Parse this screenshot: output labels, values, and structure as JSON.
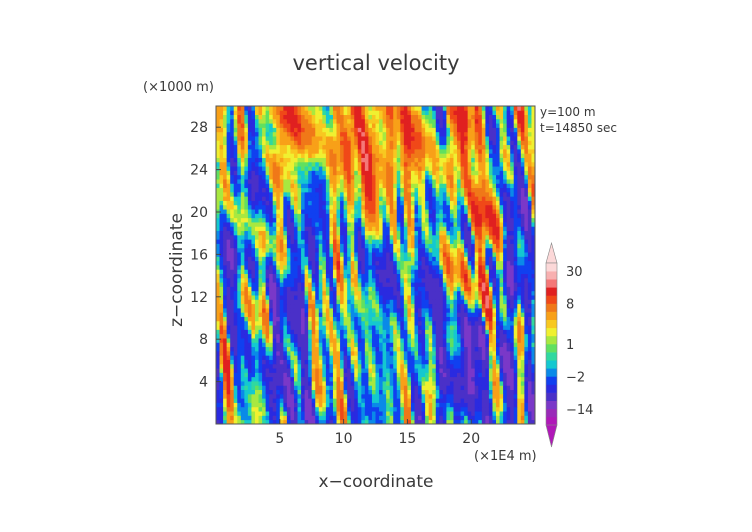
{
  "chart_data": {
    "type": "heatmap",
    "title": "vertical velocity",
    "xlabel": "x−coordinate",
    "ylabel": "z−coordinate",
    "x_unit": "(×1E4 m)",
    "y_unit": "(×1000 m)",
    "annotations": [
      "y=100 m",
      "t=14850 sec"
    ],
    "xlim": [
      0,
      25
    ],
    "ylim": [
      0,
      30
    ],
    "x_ticks": [
      5,
      10,
      15,
      20
    ],
    "y_ticks": [
      4,
      8,
      12,
      16,
      20,
      24,
      28
    ],
    "colorbar": {
      "labels": [
        {
          "text": "30",
          "value": 30
        },
        {
          "text": "8",
          "value": 8
        },
        {
          "text": "1",
          "value": 1
        },
        {
          "text": "−2",
          "value": -2
        },
        {
          "text": "−14",
          "value": -14
        }
      ],
      "levels": [
        {
          "lo": -26,
          "hi": -20,
          "color": "#b018b8"
        },
        {
          "lo": -20,
          "hi": -14,
          "color": "#9a2ab8"
        },
        {
          "lo": -14,
          "hi": -10,
          "color": "#7a38c8"
        },
        {
          "lo": -10,
          "hi": -6,
          "color": "#4a30c8"
        },
        {
          "lo": -6,
          "hi": -4,
          "color": "#2a2ae0"
        },
        {
          "lo": -4,
          "hi": -2,
          "color": "#1040f0"
        },
        {
          "lo": -2,
          "hi": -1,
          "color": "#0a8ae8"
        },
        {
          "lo": -1,
          "hi": 0,
          "color": "#14c8d0"
        },
        {
          "lo": 0,
          "hi": 0.5,
          "color": "#30d8a0"
        },
        {
          "lo": 0.5,
          "hi": 1,
          "color": "#60e060"
        },
        {
          "lo": 1,
          "hi": 2,
          "color": "#a8e840"
        },
        {
          "lo": 2,
          "hi": 3,
          "color": "#f0f030"
        },
        {
          "lo": 3,
          "hi": 4,
          "color": "#f8c820"
        },
        {
          "lo": 4,
          "hi": 6,
          "color": "#f8a018"
        },
        {
          "lo": 6,
          "hi": 8,
          "color": "#f07818"
        },
        {
          "lo": 8,
          "hi": 10,
          "color": "#f04818"
        },
        {
          "lo": 10,
          "hi": 14,
          "color": "#e02020"
        },
        {
          "lo": 14,
          "hi": 20,
          "color": "#f47878"
        },
        {
          "lo": 20,
          "hi": 30,
          "color": "#f8b0b0"
        },
        {
          "lo": 30,
          "hi": 40,
          "color": "#fcd8d8"
        }
      ],
      "under_color": "#b018b8",
      "over_color": "#fcd8d8"
    },
    "field": {
      "nx": 90,
      "nz": 74,
      "pattern": "turbulent vertically-elongated plumes"
    }
  }
}
